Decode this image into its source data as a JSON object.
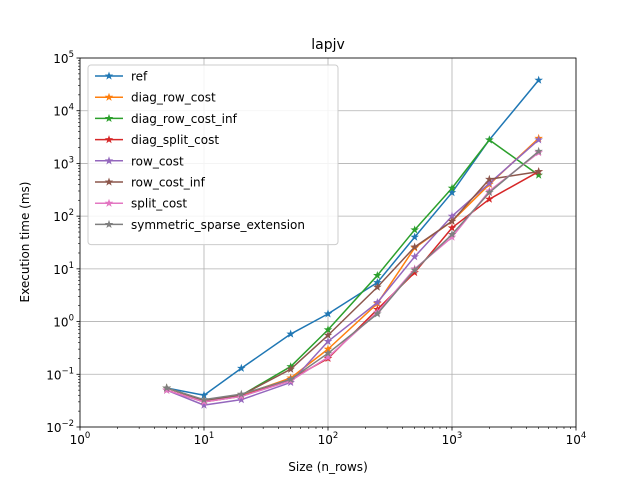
{
  "chart_data": {
    "type": "line",
    "title": "lapjv",
    "xlabel": "Size (n_rows)",
    "ylabel": "Execution time (ms)",
    "xscale": "log",
    "yscale": "log",
    "xlim": [
      1,
      10000
    ],
    "ylim": [
      0.01,
      100000
    ],
    "grid": true,
    "legend_position": "upper-left",
    "x_ticks": [
      {
        "value": 1,
        "base": "10",
        "exp": "0"
      },
      {
        "value": 10,
        "base": "10",
        "exp": "1"
      },
      {
        "value": 100,
        "base": "10",
        "exp": "2"
      },
      {
        "value": 1000,
        "base": "10",
        "exp": "3"
      },
      {
        "value": 10000,
        "base": "10",
        "exp": "4"
      }
    ],
    "y_ticks": [
      {
        "value": 0.01,
        "base": "10",
        "exp": "−2"
      },
      {
        "value": 0.1,
        "base": "10",
        "exp": "−1"
      },
      {
        "value": 1,
        "base": "10",
        "exp": "0"
      },
      {
        "value": 10,
        "base": "10",
        "exp": "1"
      },
      {
        "value": 100,
        "base": "10",
        "exp": "2"
      },
      {
        "value": 1000,
        "base": "10",
        "exp": "3"
      },
      {
        "value": 10000,
        "base": "10",
        "exp": "4"
      },
      {
        "value": 100000,
        "base": "10",
        "exp": "5"
      }
    ],
    "series": [
      {
        "name": "ref",
        "color": "#1f77b4",
        "x": [
          5,
          10,
          20,
          50,
          100,
          250,
          500,
          1000,
          2000,
          5000
        ],
        "y": [
          0.055,
          0.04,
          0.13,
          0.58,
          1.4,
          5.5,
          40,
          280,
          2800,
          38000
        ]
      },
      {
        "name": "diag_row_cost",
        "color": "#ff7f0e",
        "x": [
          5,
          10,
          20,
          50,
          100,
          250,
          500,
          1000,
          2000,
          5000
        ],
        "y": [
          0.055,
          0.032,
          0.04,
          0.085,
          0.3,
          2.2,
          25,
          80,
          400,
          3000
        ]
      },
      {
        "name": "diag_row_cost_inf",
        "color": "#2ca02c",
        "x": [
          5,
          10,
          20,
          50,
          100,
          250,
          500,
          1000,
          2000,
          5000
        ],
        "y": [
          0.055,
          0.032,
          0.04,
          0.14,
          0.7,
          7.5,
          55,
          340,
          2800,
          600
        ]
      },
      {
        "name": "diag_split_cost",
        "color": "#d62728",
        "x": [
          5,
          10,
          20,
          50,
          100,
          250,
          500,
          1000,
          2000,
          5000
        ],
        "y": [
          0.05,
          0.03,
          0.038,
          0.08,
          0.2,
          1.7,
          8.5,
          60,
          210,
          700
        ]
      },
      {
        "name": "row_cost",
        "color": "#9467bd",
        "x": [
          5,
          10,
          20,
          50,
          100,
          250,
          500,
          1000,
          2000,
          5000
        ],
        "y": [
          0.05,
          0.026,
          0.033,
          0.07,
          0.42,
          2.3,
          17,
          100,
          420,
          2800
        ]
      },
      {
        "name": "row_cost_inf",
        "color": "#8c564b",
        "x": [
          5,
          10,
          20,
          50,
          100,
          250,
          500,
          1000,
          2000,
          5000
        ],
        "y": [
          0.055,
          0.032,
          0.04,
          0.125,
          0.55,
          4.5,
          26,
          80,
          500,
          700
        ]
      },
      {
        "name": "split_cost",
        "color": "#e377c2",
        "x": [
          5,
          10,
          20,
          50,
          100,
          250,
          500,
          1000,
          2000,
          5000
        ],
        "y": [
          0.05,
          0.03,
          0.038,
          0.075,
          0.21,
          1.5,
          10,
          40,
          300,
          1600
        ]
      },
      {
        "name": "symmetric_sparse_extension",
        "color": "#7f7f7f",
        "x": [
          5,
          10,
          20,
          50,
          100,
          250,
          500,
          1000,
          2000,
          5000
        ],
        "y": [
          0.055,
          0.033,
          0.042,
          0.08,
          0.25,
          1.4,
          9.5,
          45,
          280,
          1700
        ]
      }
    ]
  }
}
